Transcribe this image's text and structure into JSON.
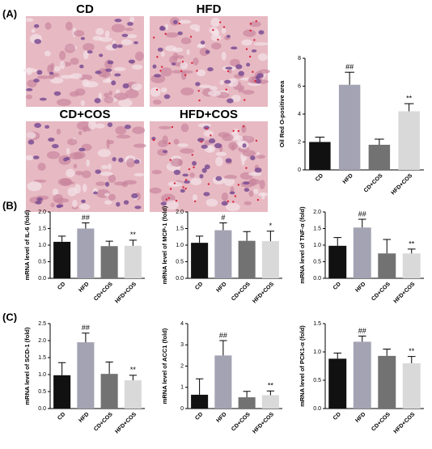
{
  "panel_labels": [
    "(A)",
    "(B)",
    "(C)"
  ],
  "image_labels": [
    "CD",
    "HFD",
    "CD+COS",
    "HFD+COS"
  ],
  "chart_data": [
    {
      "type": "bar",
      "ylabel": "Oil Red O-positive area",
      "categories": [
        "CD",
        "HFD",
        "CD+COS",
        "HFD+COS"
      ],
      "values": [
        2.0,
        6.1,
        1.8,
        4.2
      ],
      "errors": [
        0.35,
        0.9,
        0.4,
        0.55
      ],
      "annotations": [
        null,
        "##",
        null,
        "**"
      ],
      "colors": [
        "#111111",
        "#a3a3b3",
        "#727272",
        "#d9d9d9"
      ],
      "ylim": [
        0,
        8
      ],
      "yticks": [
        0,
        2,
        4,
        6,
        8
      ]
    },
    {
      "type": "bar",
      "ylabel": "mRNA level of IL-6 (fold)",
      "categories": [
        "CD",
        "HFD",
        "CD+COS",
        "HFD+COS"
      ],
      "values": [
        1.1,
        1.5,
        0.97,
        0.98
      ],
      "errors": [
        0.17,
        0.17,
        0.15,
        0.17
      ],
      "annotations": [
        null,
        "##",
        null,
        "**"
      ],
      "colors": [
        "#111111",
        "#a3a3b3",
        "#727272",
        "#d9d9d9"
      ],
      "ylim": [
        0,
        2
      ],
      "yticks": [
        {
          "value": 0,
          "label": "0.0"
        },
        0.5,
        {
          "value": 1,
          "label": "1.0"
        },
        1.5,
        {
          "value": 2,
          "label": "2.0"
        }
      ]
    },
    {
      "type": "bar",
      "ylabel": "mRNA level of MCP-1 (fold)",
      "categories": [
        "CD",
        "HFD",
        "CD+COS",
        "HFD+COS"
      ],
      "values": [
        1.07,
        1.45,
        1.13,
        1.12
      ],
      "errors": [
        0.2,
        0.22,
        0.28,
        0.3
      ],
      "annotations": [
        null,
        "#",
        null,
        "*"
      ],
      "colors": [
        "#111111",
        "#a3a3b3",
        "#727272",
        "#d9d9d9"
      ],
      "ylim": [
        0,
        2
      ],
      "yticks": [
        {
          "value": 0,
          "label": "0.0"
        },
        0.5,
        {
          "value": 1,
          "label": "1.0"
        },
        1.5,
        {
          "value": 2,
          "label": "2.0"
        }
      ]
    },
    {
      "type": "bar",
      "ylabel": "mRNA level of TNF-α (fold)",
      "categories": [
        "CD",
        "HFD",
        "CD+COS",
        "HFD+COS"
      ],
      "values": [
        0.98,
        1.53,
        0.75,
        0.75
      ],
      "errors": [
        0.25,
        0.25,
        0.42,
        0.13
      ],
      "annotations": [
        null,
        "##",
        null,
        "**"
      ],
      "colors": [
        "#111111",
        "#a3a3b3",
        "#727272",
        "#d9d9d9"
      ],
      "ylim": [
        0,
        2
      ],
      "yticks": [
        {
          "value": 0,
          "label": "0.0"
        },
        0.5,
        {
          "value": 1,
          "label": "1.0"
        },
        1.5,
        {
          "value": 2,
          "label": "2.0"
        }
      ]
    },
    {
      "type": "bar",
      "ylabel": "mRNA level of SCD-1 (fold)",
      "categories": [
        "CD",
        "HFD",
        "CD+COS",
        "HFD+COS"
      ],
      "values": [
        0.98,
        1.95,
        1.02,
        0.83
      ],
      "errors": [
        0.37,
        0.27,
        0.35,
        0.15
      ],
      "annotations": [
        null,
        "##",
        null,
        "**"
      ],
      "colors": [
        "#111111",
        "#a3a3b3",
        "#727272",
        "#d9d9d9"
      ],
      "ylim": [
        0,
        2.5
      ],
      "yticks": [
        {
          "value": 0,
          "label": "0.0"
        },
        0.5,
        {
          "value": 1,
          "label": "1.0"
        },
        1.5,
        {
          "value": 2,
          "label": "2.0"
        },
        2.5
      ]
    },
    {
      "type": "bar",
      "ylabel": "mRNA level of ACC1 (fold)",
      "categories": [
        "CD",
        "HFD",
        "CD+COS",
        "HFD+COS"
      ],
      "values": [
        0.65,
        2.5,
        0.53,
        0.63
      ],
      "errors": [
        0.75,
        0.7,
        0.28,
        0.2
      ],
      "annotations": [
        null,
        "##",
        null,
        "**"
      ],
      "colors": [
        "#111111",
        "#a3a3b3",
        "#727272",
        "#d9d9d9"
      ],
      "ylim": [
        0,
        4
      ],
      "yticks": [
        0,
        1,
        2,
        3,
        4
      ]
    },
    {
      "type": "bar",
      "ylabel": "mRNA level of PCK1-α (fold)",
      "categories": [
        "CD",
        "HFD",
        "CD+COS",
        "HFD+COS"
      ],
      "values": [
        0.88,
        1.18,
        0.93,
        0.8
      ],
      "errors": [
        0.1,
        0.1,
        0.12,
        0.12
      ],
      "annotations": [
        null,
        "##",
        null,
        "**"
      ],
      "colors": [
        "#111111",
        "#a3a3b3",
        "#727272",
        "#d9d9d9"
      ],
      "ylim": [
        0,
        1.5
      ],
      "yticks": [
        {
          "value": 0,
          "label": "0.0"
        },
        0.5,
        {
          "value": 1,
          "label": "1.0"
        },
        1.5
      ]
    }
  ]
}
